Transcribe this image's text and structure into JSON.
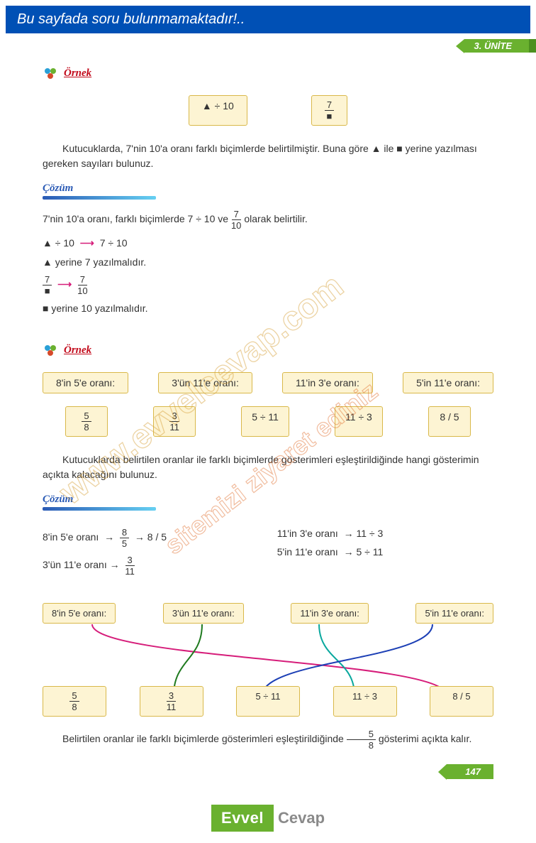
{
  "banner": {
    "text": "Bu sayfada soru bulunmamaktadır!..",
    "bg": "#0050b5"
  },
  "unit": {
    "label": "3. ÜNİTE",
    "bg": "#6ab12f"
  },
  "headings": {
    "ornek": "Örnek",
    "cozum": "Çözüm"
  },
  "ex1": {
    "box_left": "▲ ÷ 10",
    "box_right_num": "7",
    "box_right_den": "■",
    "prompt": "Kutucuklarda, 7'nin 10'a oranı farklı biçimlerde belirtilmiştir. Buna göre ▲ ile ■ yerine yazılması gereken sayıları bulunuz.",
    "sol": {
      "line1_a": "7'nin 10'a oranı, farklı biçimlerde 7 ÷ 10 ve ",
      "line1_frac_n": "7",
      "line1_frac_d": "10",
      "line1_b": " olarak belirtilir.",
      "line2_a": "▲ ÷ 10 ",
      "line2_b": " 7 ÷ 10",
      "line3": "▲ yerine 7 yazılmalıdır.",
      "line4_l_n": "7",
      "line4_l_d": "■",
      "line4_r_n": "7",
      "line4_r_d": "10",
      "line5": "■ yerine 10 yazılmalıdır."
    }
  },
  "ex2": {
    "top_labels": [
      "8'in 5'e oranı:",
      "3'ün 11'e oranı:",
      "11'in 3'e oranı:",
      "5'in 11'e oranı:"
    ],
    "bottom": [
      {
        "type": "frac",
        "n": "5",
        "d": "8"
      },
      {
        "type": "frac",
        "n": "3",
        "d": "11"
      },
      {
        "type": "text",
        "t": "5 ÷ 11"
      },
      {
        "type": "text",
        "t": "11 ÷ 3"
      },
      {
        "type": "text",
        "t": "8 / 5"
      }
    ],
    "prompt": "Kutucuklarda belirtilen oranlar ile farklı biçimlerde gösterimleri eşleştirildiğinde hangi gösterimin açıkta kalacağını bulunuz.",
    "sol_left": [
      {
        "label": "8'in 5'e oranı",
        "step_frac_n": "8",
        "step_frac_d": "5",
        "tail": "→ 8 / 5"
      },
      {
        "label": "3'ün 11'e oranı",
        "step_frac_n": "3",
        "step_frac_d": "11",
        "tail": ""
      }
    ],
    "sol_right": [
      {
        "label": "11'in 3'e oranı",
        "tail": "→  11 ÷ 3"
      },
      {
        "label": "5'in 11'e oranı",
        "tail": "→  5 ÷ 11"
      }
    ],
    "match": {
      "top": [
        "8'in 5'e oranı:",
        "3'ün 11'e oranı:",
        "11'in 3'e oranı:",
        "5'in 11'e oranı:"
      ],
      "bot": [
        {
          "type": "frac",
          "n": "5",
          "d": "8"
        },
        {
          "type": "frac",
          "n": "3",
          "d": "11"
        },
        {
          "type": "text",
          "t": "5 ÷ 11"
        },
        {
          "type": "text",
          "t": "11 ÷ 3"
        },
        {
          "type": "text",
          "t": "8 / 5"
        }
      ],
      "lines": [
        {
          "from": 0,
          "to": 4,
          "color": "#d61d7a"
        },
        {
          "from": 1,
          "to": 1,
          "color": "#1f7a1f"
        },
        {
          "from": 2,
          "to": 3,
          "color": "#0aa89e"
        },
        {
          "from": 3,
          "to": 2,
          "color": "#1c3fb5"
        }
      ],
      "top_x": [
        70,
        225,
        390,
        550
      ],
      "bot_x": [
        55,
        185,
        310,
        440,
        570
      ]
    },
    "conclusion_a": "Belirtilen oranlar ile farklı biçimlerde gösterimleri eşleştirildiğinde ",
    "conclusion_frac_n": "5",
    "conclusion_frac_d": "8",
    "conclusion_b": " gösterimi açıkta kalır."
  },
  "page_number": "147",
  "logo": {
    "left": "Evvel",
    "right": "Cevap"
  },
  "watermark": {
    "line1": "www.evvelcevap.com",
    "line2": "sitemizi ziyaret ediniz",
    "color1": "#d6a03a",
    "color2": "#e07030"
  }
}
